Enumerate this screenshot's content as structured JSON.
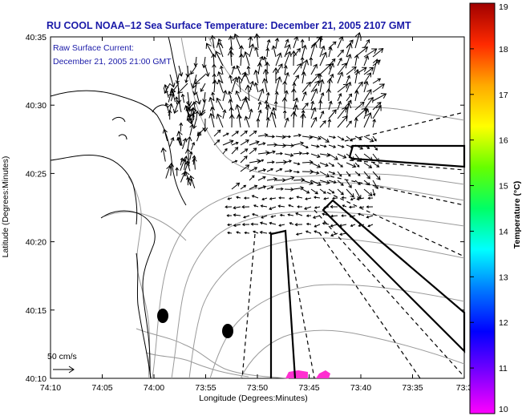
{
  "title": "RU COOL  NOAA–12  Sea Surface Temperature:  December 21, 2005 2107 GMT",
  "subtitle_line1": "Raw Surface Current:",
  "subtitle_line2": "December 21, 2005 21:00 GMT",
  "xlabel": "Longitude (Degrees:Minutes)",
  "ylabel": "Latitude (Degrees:Minutes)",
  "colorbar_label": "Temperature (°C)",
  "scale_label": "50 cm/s",
  "colors": {
    "title": "#1a1aa8",
    "land_coast": "#000000",
    "bathymetry": "#9a9a9a",
    "sst_patch": "#ff2fd0"
  },
  "chart_data": {
    "type": "map",
    "x_ticks": [
      "74:10",
      "74:05",
      "74:00",
      "73:55",
      "73:50",
      "73:45",
      "73:40",
      "73:35",
      "73:3"
    ],
    "y_ticks": [
      "40:35",
      "40:30",
      "40:25",
      "40:20",
      "40:15",
      "40:10"
    ],
    "colorbar": {
      "min": 10,
      "max": 19,
      "ticks": [
        "19",
        "18",
        "17",
        "16",
        "15",
        "14",
        "13",
        "12",
        "11",
        "10"
      ],
      "stops": [
        "#ff00ff",
        "#7a00ff",
        "#0000ff",
        "#0077ff",
        "#00ffff",
        "#00ff66",
        "#66ff00",
        "#ffff00",
        "#ffaa00",
        "#ff2a00",
        "#a00000"
      ]
    },
    "markers": [
      "station-dot-1",
      "station-dot-2"
    ]
  }
}
